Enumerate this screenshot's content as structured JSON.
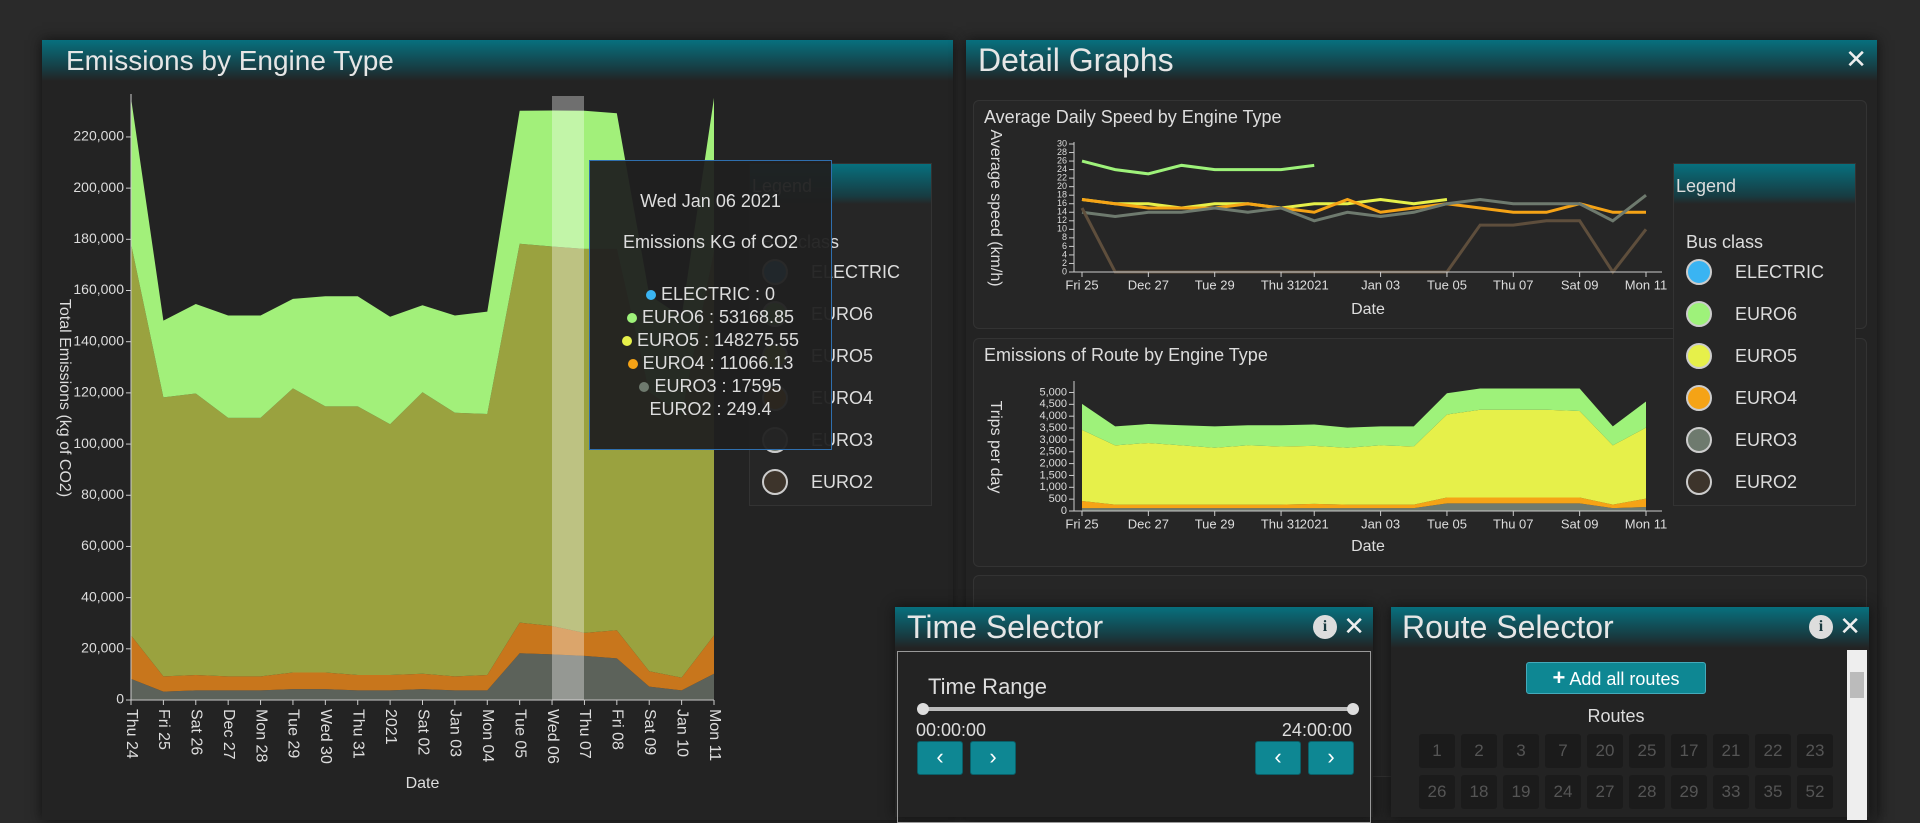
{
  "chart_data": [
    {
      "type": "area",
      "title": "Emissions by Engine Type",
      "x_label": "Date",
      "y_label": "Total Emissions (kg of CO2)",
      "categories": [
        "Thu 24",
        "Fri 25",
        "Sat 26",
        "Dec 27",
        "Mon 28",
        "Tue 29",
        "Wed 30",
        "Thu 31",
        "2021",
        "Sat 02",
        "Jan 03",
        "Mon 04",
        "Tue 05",
        "Wed 06",
        "Thu 07",
        "Fri 08",
        "Sat 09",
        "Jan 10",
        "Mon 11"
      ],
      "series": [
        {
          "name": "ELECTRIC",
          "color": "#3ab4f2",
          "values": [
            0,
            0,
            0,
            0,
            0,
            0,
            0,
            0,
            0,
            0,
            0,
            0,
            0,
            0,
            0,
            0,
            0,
            0,
            0
          ]
        },
        {
          "name": "EURO6",
          "color": "#a2f07a",
          "values": [
            57000,
            30000,
            35000,
            40000,
            40000,
            35000,
            43000,
            43000,
            42000,
            34000,
            38000,
            40000,
            52000,
            53168.85,
            54000,
            53000,
            38000,
            38000,
            60000
          ]
        },
        {
          "name": "EURO5",
          "color": "#9aa23f",
          "values": [
            153000,
            109000,
            110000,
            101000,
            101000,
            111000,
            104000,
            105000,
            98000,
            110000,
            103000,
            102000,
            148000,
            148275.55,
            150000,
            149000,
            109000,
            103000,
            150000
          ]
        },
        {
          "name": "EURO4",
          "color": "#c8761c",
          "values": [
            17000,
            6000,
            6000,
            5500,
            5500,
            6500,
            6500,
            6000,
            6000,
            6000,
            5500,
            6000,
            12000,
            11066.13,
            9000,
            11000,
            6000,
            5000,
            15000
          ]
        },
        {
          "name": "EURO3",
          "color": "#5c625a",
          "values": [
            8000,
            3000,
            3500,
            3500,
            3500,
            4000,
            4000,
            3500,
            3500,
            4000,
            3500,
            3500,
            18000,
            17595,
            17000,
            16000,
            5000,
            3500,
            10000
          ]
        },
        {
          "name": "EURO2",
          "color": "#4a4036",
          "values": [
            250,
            250,
            250,
            250,
            250,
            250,
            250,
            250,
            250,
            250,
            250,
            250,
            250,
            249.4,
            250,
            250,
            250,
            250,
            250
          ]
        }
      ],
      "ylim": [
        0,
        236000
      ],
      "yticks": [
        0,
        {
          "value": 20000,
          "label": "20,000"
        },
        {
          "value": 40000,
          "label": "40,000"
        },
        {
          "value": 60000,
          "label": "60,000"
        },
        {
          "value": 80000,
          "label": "80,000"
        },
        {
          "value": 100000,
          "label": "100,000"
        },
        {
          "value": 120000,
          "label": "120,000"
        },
        {
          "value": 140000,
          "label": "140,000"
        },
        {
          "value": 160000,
          "label": "160,000"
        },
        {
          "value": 180000,
          "label": "180,000"
        },
        {
          "value": 200000,
          "label": "200,000"
        },
        {
          "value": 220000,
          "label": "220,000"
        }
      ]
    },
    {
      "type": "line",
      "title": "Average Daily Speed by Engine Type",
      "x_label": "Date",
      "y_label": "Average speed (km/h)",
      "categories": [
        "Fri 25",
        null,
        "Dec 27",
        null,
        "Tue 29",
        null,
        "Thu 31",
        "2021",
        null,
        "Jan 03",
        null,
        "Tue 05",
        null,
        "Thu 07",
        null,
        "Sat 09",
        null,
        "Mon 11"
      ],
      "series": [
        {
          "name": "EURO6",
          "color": "#9ef27a",
          "values": [
            26,
            24,
            23,
            25,
            24,
            24,
            24,
            25,
            null,
            null,
            null,
            null,
            null,
            null,
            null,
            null,
            null,
            null
          ]
        },
        {
          "name": "EURO5",
          "color": "#e6f04a",
          "values": [
            17,
            16,
            16,
            15,
            16,
            16,
            15,
            16,
            16,
            17,
            16,
            17,
            null,
            null,
            null,
            null,
            null,
            null
          ]
        },
        {
          "name": "EURO4",
          "color": "#f5a316",
          "values": [
            17,
            16,
            15,
            15,
            15,
            16,
            15,
            14,
            17,
            14,
            15,
            16,
            15,
            14,
            14,
            16,
            14,
            14
          ]
        },
        {
          "name": "EURO3",
          "color": "#6e7a6e",
          "values": [
            14,
            13,
            14,
            14,
            15,
            14,
            15,
            12,
            14,
            13,
            14,
            16,
            17,
            16,
            16,
            16,
            12,
            18
          ]
        },
        {
          "name": "EURO2",
          "color": "#5e4e3c",
          "values": [
            15,
            0,
            0,
            0,
            0,
            0,
            0,
            0,
            0,
            0,
            0,
            0,
            11,
            11,
            12,
            12,
            0,
            10
          ]
        }
      ],
      "ylim": [
        0,
        30
      ],
      "yticks": [
        0,
        2,
        4,
        6,
        8,
        10,
        12,
        14,
        16,
        18,
        20,
        22,
        24,
        26,
        28,
        30
      ]
    },
    {
      "type": "area",
      "title": "Emissions of Route by Engine Type",
      "x_label": "Date",
      "y_label": "Trips per day",
      "categories": [
        "Fri 25",
        null,
        "Dec 27",
        null,
        "Tue 29",
        null,
        "Thu 31",
        "2021",
        null,
        "Jan 03",
        null,
        "Tue 05",
        null,
        "Thu 07",
        null,
        "Sat 09",
        null,
        "Mon 11"
      ],
      "series": [
        {
          "name": "EURO6",
          "color": "#9ef27a",
          "values": [
            1100,
            800,
            800,
            850,
            900,
            850,
            900,
            900,
            850,
            800,
            850,
            900,
            900,
            900,
            900,
            950,
            800,
            1100
          ]
        },
        {
          "name": "EURO5",
          "color": "#e6f04a",
          "values": [
            3000,
            2500,
            2600,
            2500,
            2400,
            2500,
            2450,
            2450,
            2400,
            2500,
            2450,
            3500,
            3700,
            3700,
            3700,
            3650,
            2500,
            3000
          ]
        },
        {
          "name": "EURO4",
          "color": "#f5a316",
          "values": [
            300,
            150,
            150,
            150,
            150,
            150,
            150,
            180,
            150,
            150,
            150,
            250,
            250,
            250,
            250,
            250,
            150,
            350
          ]
        },
        {
          "name": "EURO3",
          "color": "#6e7a6e",
          "values": [
            100,
            100,
            100,
            100,
            100,
            100,
            100,
            100,
            100,
            100,
            100,
            300,
            300,
            300,
            300,
            300,
            100,
            150
          ]
        },
        {
          "name": "EURO2",
          "color": "#5e4e3c",
          "values": [
            20,
            20,
            20,
            20,
            20,
            20,
            20,
            20,
            20,
            20,
            20,
            20,
            20,
            20,
            20,
            20,
            20,
            20
          ]
        }
      ],
      "ylim": [
        0,
        5400
      ],
      "yticks": [
        0,
        500,
        {
          "value": 1000,
          "label": "1,000"
        },
        {
          "value": 1500,
          "label": "1,500"
        },
        {
          "value": 2000,
          "label": "2,000"
        },
        {
          "value": 2500,
          "label": "2,500"
        },
        {
          "value": 3000,
          "label": "3,000"
        },
        {
          "value": 3500,
          "label": "3,500"
        },
        {
          "value": 4000,
          "label": "4,000"
        },
        {
          "value": 4500,
          "label": "4,500"
        },
        {
          "value": 5000,
          "label": "5,000"
        }
      ]
    }
  ],
  "detail_panel": {
    "title": "Detail Graphs"
  },
  "legend": {
    "title": "Legend",
    "subtitle": "Bus class",
    "items": [
      {
        "name": "ELECTRIC",
        "color": "#3ab4f2"
      },
      {
        "name": "EURO6",
        "color": "#9ef27a"
      },
      {
        "name": "EURO5",
        "color": "#e6f04a"
      },
      {
        "name": "EURO4",
        "color": "#f5a316"
      },
      {
        "name": "EURO3",
        "color": "#6e7a6e"
      },
      {
        "name": "EURO2",
        "color": "#3d342b"
      }
    ]
  },
  "tooltip": {
    "title": "Wed Jan 06 2021",
    "subtitle": "Emissions KG of CO2",
    "rows": [
      {
        "text": "ELECTRIC : 0",
        "color": "#3ab4f2"
      },
      {
        "text": "EURO6 : 53168.85",
        "color": "#9ef27a"
      },
      {
        "text": "EURO5 : 148275.55",
        "color": "#e6f04a"
      },
      {
        "text": "EURO4 : 11066.13",
        "color": "#f5a316"
      },
      {
        "text": "EURO3 : 17595",
        "color": "#6e7a6e"
      },
      {
        "text": "EURO2 : 249.4"
      }
    ]
  },
  "time_selector": {
    "title": "Time Selector",
    "range_label": "Time Range",
    "start": "00:00:00",
    "end": "24:00:00"
  },
  "route_selector": {
    "title": "Route Selector",
    "button": "Add all routes",
    "routes_label": "Routes",
    "routes": [
      "1",
      "2",
      "3",
      "7",
      "20",
      "25",
      "17",
      "21",
      "22",
      "23",
      "26",
      "18",
      "19",
      "24",
      "27",
      "28",
      "29",
      "33",
      "35",
      "52"
    ]
  }
}
